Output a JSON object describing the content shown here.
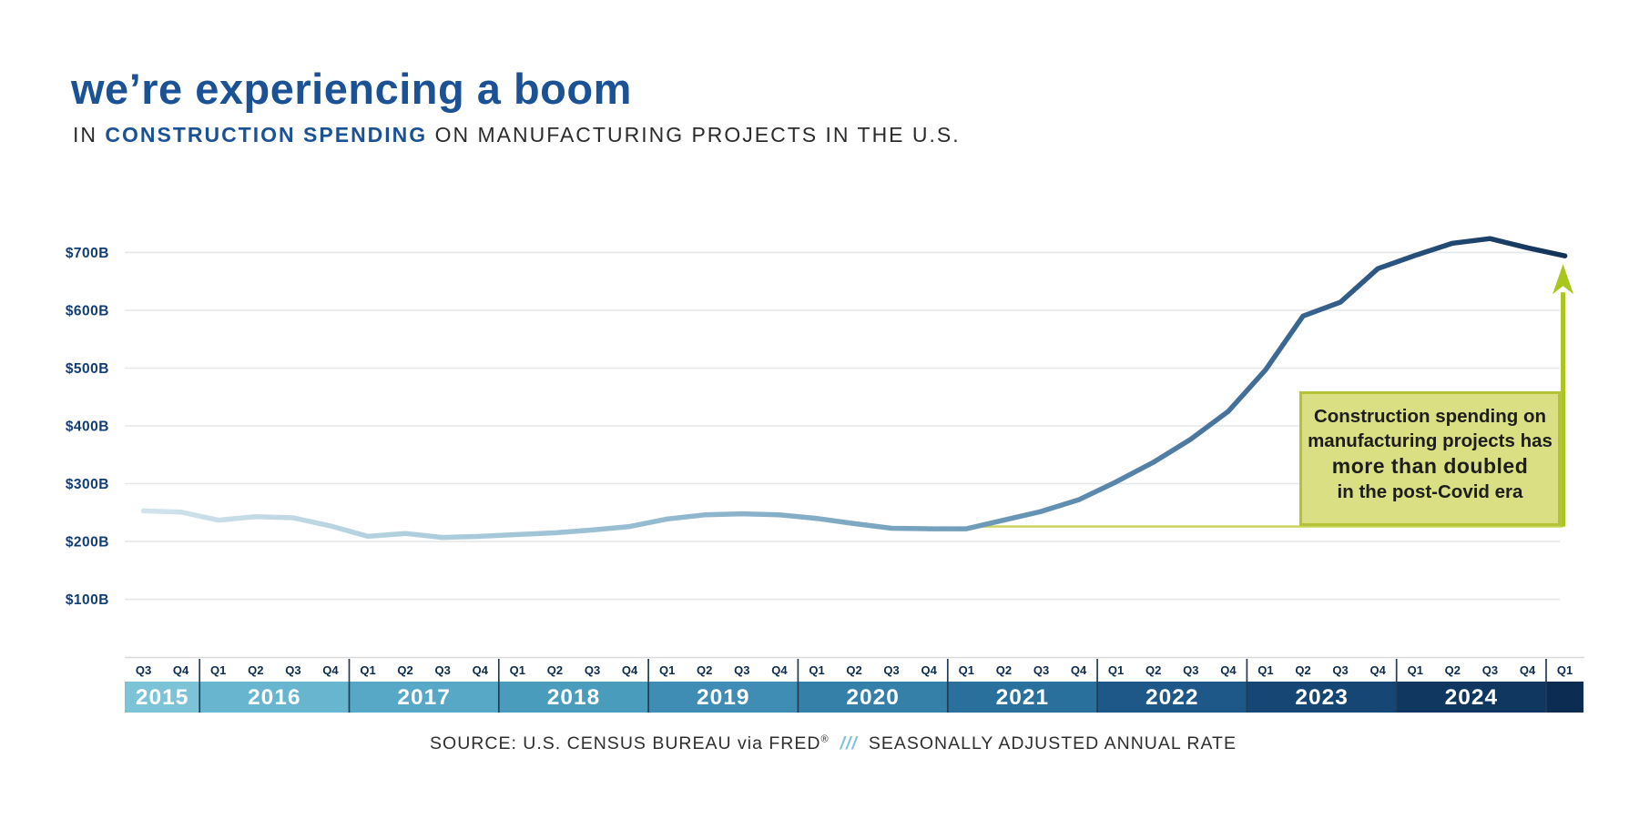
{
  "header": {
    "title": "we’re experiencing a boom",
    "subtitle_prefix": "IN ",
    "subtitle_emphasis": "CONSTRUCTION SPENDING",
    "subtitle_suffix": " ON MANUFACTURING PROJECTS IN THE U.S."
  },
  "colors": {
    "title_blue": "#1b5296",
    "text_dark": "#2b2b2b",
    "gridline": "#e5e7e9",
    "axis_rule": "#d9d9d9",
    "divider": "#223c55",
    "ytick_label": "#123d72",
    "quarter_label": "#0d2c4d",
    "line_gradient": [
      {
        "offset": 0,
        "color": "#d4e5ed"
      },
      {
        "offset": 0.1,
        "color": "#c2d9e5"
      },
      {
        "offset": 0.22,
        "color": "#abccdb"
      },
      {
        "offset": 0.35,
        "color": "#96bcd1"
      },
      {
        "offset": 0.48,
        "color": "#81abc4"
      },
      {
        "offset": 0.58,
        "color": "#6f9cb9"
      },
      {
        "offset": 0.68,
        "color": "#5886aa"
      },
      {
        "offset": 0.78,
        "color": "#3e6c96"
      },
      {
        "offset": 0.88,
        "color": "#26517c"
      },
      {
        "offset": 1,
        "color": "#0f2d50"
      }
    ]
  },
  "chart_data": {
    "type": "line",
    "title": "we're experiencing a boom in construction spending on manufacturing projects in the U.S.",
    "unit": "$B, seasonally adjusted annual rate",
    "ylim": [
      100,
      740
    ],
    "grid": "horizontal",
    "legend": "none",
    "yticks": [
      {
        "value": 700,
        "label": "$700B"
      },
      {
        "value": 600,
        "label": "$600B"
      },
      {
        "value": 500,
        "label": "$500B"
      },
      {
        "value": 400,
        "label": "$400B"
      },
      {
        "value": 300,
        "label": "$300B"
      },
      {
        "value": 200,
        "label": "$200B"
      },
      {
        "value": 100,
        "label": "$100B"
      }
    ],
    "years": [
      {
        "label": "2015",
        "quarters": [
          "Q3",
          "Q4"
        ],
        "color": "#7dc3d8"
      },
      {
        "label": "2016",
        "quarters": [
          "Q1",
          "Q2",
          "Q3",
          "Q4"
        ],
        "color": "#68b5cf"
      },
      {
        "label": "2017",
        "quarters": [
          "Q1",
          "Q2",
          "Q3",
          "Q4"
        ],
        "color": "#57a8c6"
      },
      {
        "label": "2018",
        "quarters": [
          "Q1",
          "Q2",
          "Q3",
          "Q4"
        ],
        "color": "#4a9cbd"
      },
      {
        "label": "2019",
        "quarters": [
          "Q1",
          "Q2",
          "Q3",
          "Q4"
        ],
        "color": "#3f8db4"
      },
      {
        "label": "2020",
        "quarters": [
          "Q1",
          "Q2",
          "Q3",
          "Q4"
        ],
        "color": "#3480a9"
      },
      {
        "label": "2021",
        "quarters": [
          "Q1",
          "Q2",
          "Q3",
          "Q4"
        ],
        "color": "#29709c"
      },
      {
        "label": "2022",
        "quarters": [
          "Q1",
          "Q2",
          "Q3",
          "Q4"
        ],
        "color": "#1d5888"
      },
      {
        "label": "2023",
        "quarters": [
          "Q1",
          "Q2",
          "Q3",
          "Q4"
        ],
        "color": "#164673"
      },
      {
        "label": "2024",
        "quarters": [
          "Q1",
          "Q2",
          "Q3",
          "Q4"
        ],
        "color": "#103760"
      },
      {
        "label": "",
        "quarters": [
          "Q1"
        ],
        "color": "#0c2c51"
      }
    ],
    "categories": [
      "2015 Q3",
      "2015 Q4",
      "2016 Q1",
      "2016 Q2",
      "2016 Q3",
      "2016 Q4",
      "2017 Q1",
      "2017 Q2",
      "2017 Q3",
      "2017 Q4",
      "2018 Q1",
      "2018 Q2",
      "2018 Q3",
      "2018 Q4",
      "2019 Q1",
      "2019 Q2",
      "2019 Q3",
      "2019 Q4",
      "2020 Q1",
      "2020 Q2",
      "2020 Q3",
      "2020 Q4",
      "2021 Q1",
      "2021 Q2",
      "2021 Q3",
      "2021 Q4",
      "2022 Q1",
      "2022 Q2",
      "2022 Q3",
      "2022 Q4",
      "2023 Q1",
      "2023 Q2",
      "2023 Q3",
      "2023 Q4",
      "2024 Q1",
      "2024 Q2",
      "2024 Q3",
      "2024 Q4",
      "2025 Q1"
    ],
    "series": [
      {
        "name": "Construction spending on manufacturing projects (SAAR, $B)",
        "values": [
          253,
          251,
          237,
          243,
          241,
          227,
          209,
          214,
          207,
          209,
          212,
          215,
          220,
          226,
          239,
          246,
          248,
          246,
          240,
          231,
          223,
          222,
          222,
          237,
          252,
          272,
          303,
          337,
          377,
          425,
          497,
          590,
          614,
          672,
          695,
          716,
          724,
          708,
          694
        ]
      }
    ]
  },
  "annotation": {
    "lines": [
      "Construction spending on",
      "manufacturing projects has",
      "more than doubled",
      "in the post-Covid era"
    ],
    "emphasis_line_index": 2,
    "baseline_value": 226,
    "box_fill": "#d9df82",
    "box_border": "#b4c237",
    "line_color": "#c9d455",
    "arrow_color": "#a9c61e"
  },
  "source": {
    "prefix": "SOURCE: U.S. CENSUS BUREAU via FRED",
    "reg": "®",
    "divider": "///",
    "suffix": "SEASONALLY ADJUSTED ANNUAL RATE"
  }
}
